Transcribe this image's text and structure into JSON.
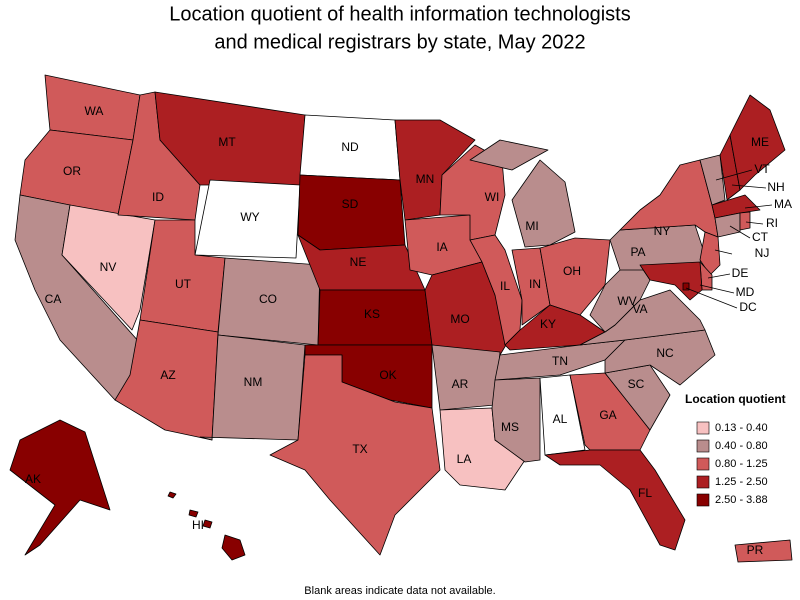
{
  "title": [
    "Location quotient of health information technologists",
    "and medical registrars by state, May 2022"
  ],
  "legend": {
    "title": "Location quotient",
    "items": [
      {
        "label": "0.13 - 0.40",
        "color": "#f7c1c1"
      },
      {
        "label": "0.40 - 0.80",
        "color": "#b98d8d"
      },
      {
        "label": "0.80 - 1.25",
        "color": "#d05a5a"
      },
      {
        "label": "1.25 - 2.50",
        "color": "#ac1f22"
      },
      {
        "label": "2.50 - 3.88",
        "color": "#880000"
      }
    ]
  },
  "states": [
    {
      "label": "WA",
      "color": "#d05a5a"
    },
    {
      "label": "OR",
      "color": "#d05a5a"
    },
    {
      "label": "CA",
      "color": "#b98d8d"
    },
    {
      "label": "NV",
      "color": "#f7c1c1"
    },
    {
      "label": "ID",
      "color": "#d05a5a"
    },
    {
      "label": "MT",
      "color": "#ac1f22"
    },
    {
      "label": "WY",
      "color": "#ffffff"
    },
    {
      "label": "UT",
      "color": "#d05a5a"
    },
    {
      "label": "CO",
      "color": "#b98d8d"
    },
    {
      "label": "AZ",
      "color": "#d05a5a"
    },
    {
      "label": "NM",
      "color": "#b98d8d"
    },
    {
      "label": "ND",
      "color": "#ffffff"
    },
    {
      "label": "SD",
      "color": "#880000"
    },
    {
      "label": "NE",
      "color": "#ac1f22"
    },
    {
      "label": "KS",
      "color": "#880000"
    },
    {
      "label": "OK",
      "color": "#880000"
    },
    {
      "label": "TX",
      "color": "#d05a5a"
    },
    {
      "label": "MN",
      "color": "#ac1f22"
    },
    {
      "label": "IA",
      "color": "#d05a5a"
    },
    {
      "label": "MO",
      "color": "#ac1f22"
    },
    {
      "label": "AR",
      "color": "#b98d8d"
    },
    {
      "label": "LA",
      "color": "#f7c1c1"
    },
    {
      "label": "WI",
      "color": "#d05a5a"
    },
    {
      "label": "IL",
      "color": "#d05a5a"
    },
    {
      "label": "MI",
      "color": "#b98d8d"
    },
    {
      "label": "IN",
      "color": "#d05a5a"
    },
    {
      "label": "OH",
      "color": "#d05a5a"
    },
    {
      "label": "KY",
      "color": "#ac1f22"
    },
    {
      "label": "TN",
      "color": "#b98d8d"
    },
    {
      "label": "MS",
      "color": "#b98d8d"
    },
    {
      "label": "AL",
      "color": "#ffffff"
    },
    {
      "label": "GA",
      "color": "#d05a5a"
    },
    {
      "label": "FL",
      "color": "#ac1f22"
    },
    {
      "label": "SC",
      "color": "#b98d8d"
    },
    {
      "label": "NC",
      "color": "#b98d8d"
    },
    {
      "label": "VA",
      "color": "#b98d8d"
    },
    {
      "label": "WV",
      "color": "#b98d8d"
    },
    {
      "label": "PA",
      "color": "#b98d8d"
    },
    {
      "label": "NY",
      "color": "#d05a5a"
    },
    {
      "label": "NJ",
      "color": "#d05a5a"
    },
    {
      "label": "DE",
      "color": "#d05a5a"
    },
    {
      "label": "MD",
      "color": "#ac1f22"
    },
    {
      "label": "DC",
      "color": "#880000"
    },
    {
      "label": "VT",
      "color": "#b98d8d"
    },
    {
      "label": "NH",
      "color": "#ac1f22"
    },
    {
      "label": "ME",
      "color": "#ac1f22"
    },
    {
      "label": "MA",
      "color": "#ac1f22"
    },
    {
      "label": "CT",
      "color": "#b98d8d"
    },
    {
      "label": "RI",
      "color": "#d05a5a"
    },
    {
      "label": "AK",
      "color": "#880000"
    },
    {
      "label": "HI",
      "color": "#880000"
    },
    {
      "label": "PR",
      "color": "#d05a5a"
    }
  ],
  "footnote": "Blank areas indicate data not available."
}
